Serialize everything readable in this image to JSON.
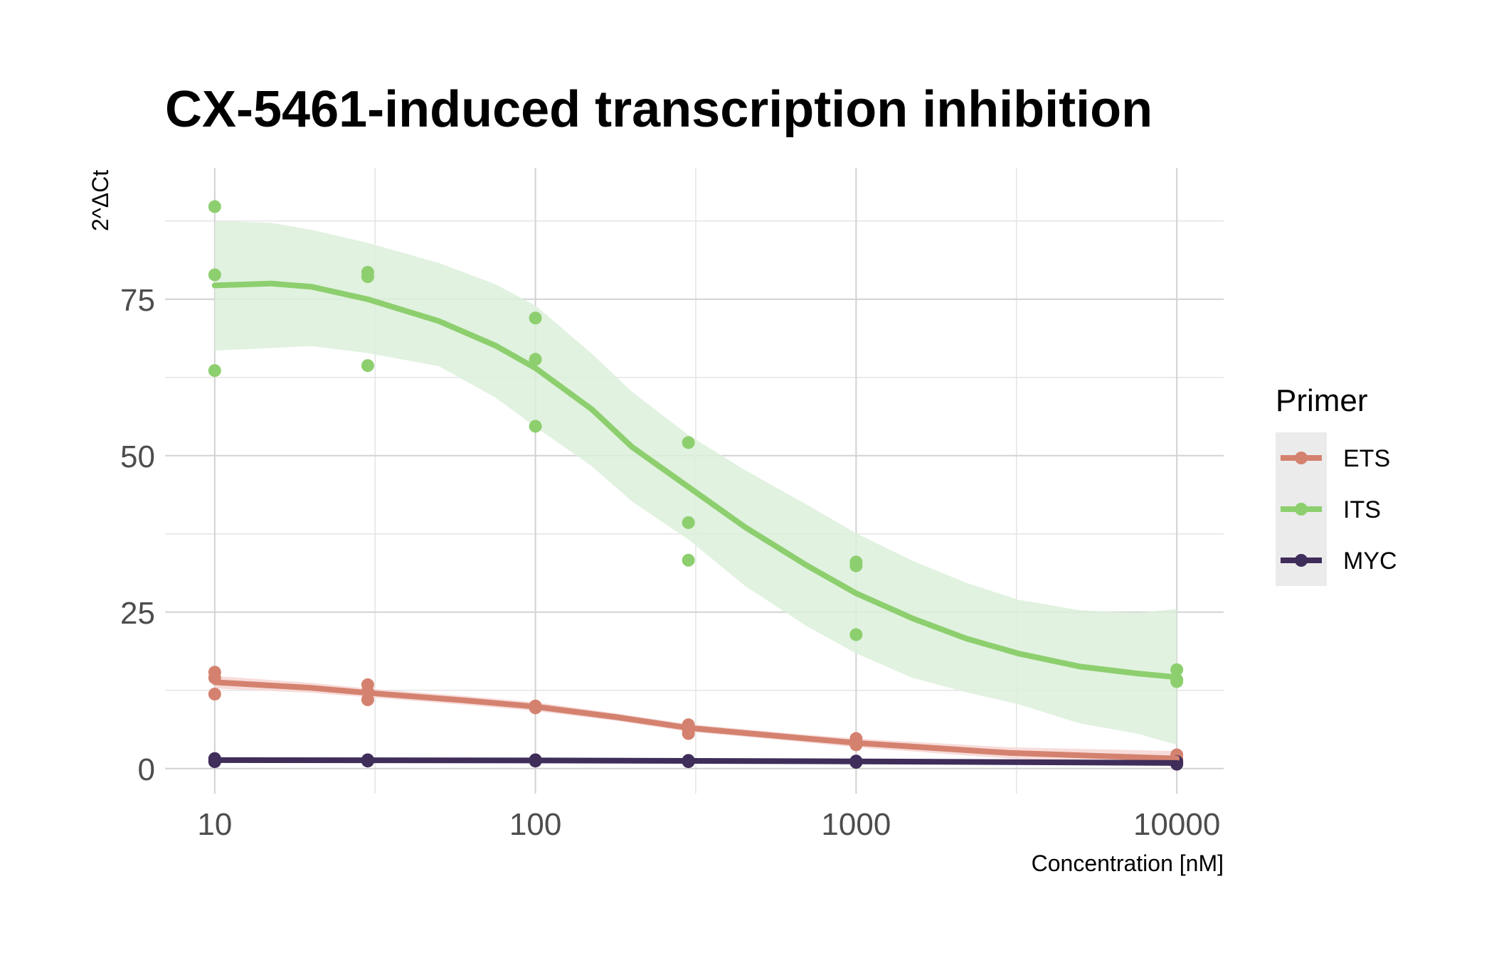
{
  "chart_data": {
    "type": "scatter",
    "title": "CX-5461-induced transcription inhibition",
    "xlabel": "Concentration [nM]",
    "ylabel": "2^ΔCt",
    "x_scale": "log10",
    "xlim": [
      7,
      14000
    ],
    "ylim": [
      -4,
      96
    ],
    "x_ticks": [
      10,
      100,
      1000,
      10000
    ],
    "x_tick_labels": [
      "10",
      "100",
      "1000",
      "10000"
    ],
    "y_ticks": [
      0,
      25,
      50,
      75
    ],
    "y_tick_labels": [
      "0",
      "25",
      "50",
      "75"
    ],
    "grid": true,
    "legend": {
      "title": "Primer",
      "placement": "right"
    },
    "series": [
      {
        "name": "ETS",
        "color": "#d4826f",
        "band_color": "#f6d6d3",
        "points": [
          {
            "x": 10,
            "y": 15.4
          },
          {
            "x": 10,
            "y": 14.5
          },
          {
            "x": 10,
            "y": 11.9
          },
          {
            "x": 30,
            "y": 13.4
          },
          {
            "x": 30,
            "y": 12.3
          },
          {
            "x": 30,
            "y": 11.0
          },
          {
            "x": 100,
            "y": 10.0
          },
          {
            "x": 100,
            "y": 9.8
          },
          {
            "x": 100,
            "y": 9.7
          },
          {
            "x": 300,
            "y": 7.0
          },
          {
            "x": 300,
            "y": 6.2
          },
          {
            "x": 300,
            "y": 5.6
          },
          {
            "x": 1000,
            "y": 4.8
          },
          {
            "x": 1000,
            "y": 4.2
          },
          {
            "x": 1000,
            "y": 3.8
          },
          {
            "x": 10000,
            "y": 2.2
          },
          {
            "x": 10000,
            "y": 1.6
          },
          {
            "x": 10000,
            "y": 1.3
          }
        ],
        "fit": [
          {
            "x": 10,
            "y": 13.8
          },
          {
            "x": 20,
            "y": 12.9
          },
          {
            "x": 30,
            "y": 12.1
          },
          {
            "x": 60,
            "y": 10.9
          },
          {
            "x": 100,
            "y": 9.9
          },
          {
            "x": 180,
            "y": 8.2
          },
          {
            "x": 300,
            "y": 6.5
          },
          {
            "x": 600,
            "y": 5.1
          },
          {
            "x": 1000,
            "y": 4.1
          },
          {
            "x": 3000,
            "y": 2.5
          },
          {
            "x": 10000,
            "y": 1.6
          }
        ],
        "band_lower": [
          12.8,
          12.1,
          11.4,
          10.2,
          9.2,
          7.6,
          5.9,
          4.5,
          3.4,
          1.6,
          0.4
        ],
        "band_upper": [
          14.8,
          13.7,
          12.8,
          11.6,
          10.6,
          8.8,
          7.1,
          5.7,
          4.8,
          3.4,
          2.8
        ]
      },
      {
        "name": "ITS",
        "color": "#8dcf6e",
        "band_color": "#dcf0da",
        "points": [
          {
            "x": 10,
            "y": 89.8
          },
          {
            "x": 10,
            "y": 78.9
          },
          {
            "x": 10,
            "y": 63.6
          },
          {
            "x": 30,
            "y": 79.3
          },
          {
            "x": 30,
            "y": 78.6
          },
          {
            "x": 30,
            "y": 64.4
          },
          {
            "x": 100,
            "y": 72.0
          },
          {
            "x": 100,
            "y": 65.4
          },
          {
            "x": 100,
            "y": 54.7
          },
          {
            "x": 300,
            "y": 52.1
          },
          {
            "x": 300,
            "y": 39.3
          },
          {
            "x": 300,
            "y": 33.3
          },
          {
            "x": 1000,
            "y": 33.0
          },
          {
            "x": 1000,
            "y": 32.4
          },
          {
            "x": 1000,
            "y": 21.4
          },
          {
            "x": 10000,
            "y": 15.8
          },
          {
            "x": 10000,
            "y": 14.2
          },
          {
            "x": 10000,
            "y": 13.9
          }
        ],
        "fit": [
          {
            "x": 10,
            "y": 77.2
          },
          {
            "x": 15,
            "y": 77.5
          },
          {
            "x": 20,
            "y": 77.0
          },
          {
            "x": 30,
            "y": 75.0
          },
          {
            "x": 50,
            "y": 71.5
          },
          {
            "x": 75,
            "y": 67.6
          },
          {
            "x": 100,
            "y": 64.0
          },
          {
            "x": 150,
            "y": 57.4
          },
          {
            "x": 200,
            "y": 51.4
          },
          {
            "x": 300,
            "y": 45.0
          },
          {
            "x": 450,
            "y": 38.6
          },
          {
            "x": 700,
            "y": 32.5
          },
          {
            "x": 1000,
            "y": 28.0
          },
          {
            "x": 1500,
            "y": 24.0
          },
          {
            "x": 2200,
            "y": 20.8
          },
          {
            "x": 3200,
            "y": 18.4
          },
          {
            "x": 5000,
            "y": 16.3
          },
          {
            "x": 7500,
            "y": 15.2
          },
          {
            "x": 10000,
            "y": 14.6
          }
        ],
        "band_lower": [
          66.8,
          67.2,
          67.5,
          66.4,
          64.3,
          59.3,
          54.6,
          48.3,
          42.7,
          36.6,
          29.2,
          22.8,
          18.4,
          14.5,
          12.2,
          10.3,
          7.2,
          5.6,
          3.8
        ],
        "band_upper": [
          87.5,
          87.2,
          86.1,
          84.0,
          80.8,
          77.4,
          74.0,
          66.3,
          60.2,
          53.3,
          47.7,
          42.2,
          37.6,
          33.2,
          29.7,
          27.0,
          25.3,
          24.9,
          25.5
        ]
      },
      {
        "name": "MYC",
        "color": "#3f2d5a",
        "band_color": "#d7d2de",
        "points": [
          {
            "x": 10,
            "y": 1.6
          },
          {
            "x": 10,
            "y": 1.3
          },
          {
            "x": 10,
            "y": 1.1
          },
          {
            "x": 30,
            "y": 1.4
          },
          {
            "x": 30,
            "y": 1.3
          },
          {
            "x": 30,
            "y": 1.2
          },
          {
            "x": 100,
            "y": 1.4
          },
          {
            "x": 100,
            "y": 1.3
          },
          {
            "x": 100,
            "y": 1.2
          },
          {
            "x": 300,
            "y": 1.3
          },
          {
            "x": 300,
            "y": 1.2
          },
          {
            "x": 300,
            "y": 1.1
          },
          {
            "x": 1000,
            "y": 1.2
          },
          {
            "x": 1000,
            "y": 1.1
          },
          {
            "x": 1000,
            "y": 1.0
          },
          {
            "x": 10000,
            "y": 1.1
          },
          {
            "x": 10000,
            "y": 0.8
          },
          {
            "x": 10000,
            "y": 0.7
          }
        ],
        "fit": [
          {
            "x": 10,
            "y": 1.35
          },
          {
            "x": 100,
            "y": 1.3
          },
          {
            "x": 1000,
            "y": 1.15
          },
          {
            "x": 10000,
            "y": 0.9
          }
        ],
        "band_lower": [
          1.15,
          1.15,
          1.0,
          0.7
        ],
        "band_upper": [
          1.55,
          1.45,
          1.3,
          1.1
        ]
      }
    ]
  }
}
